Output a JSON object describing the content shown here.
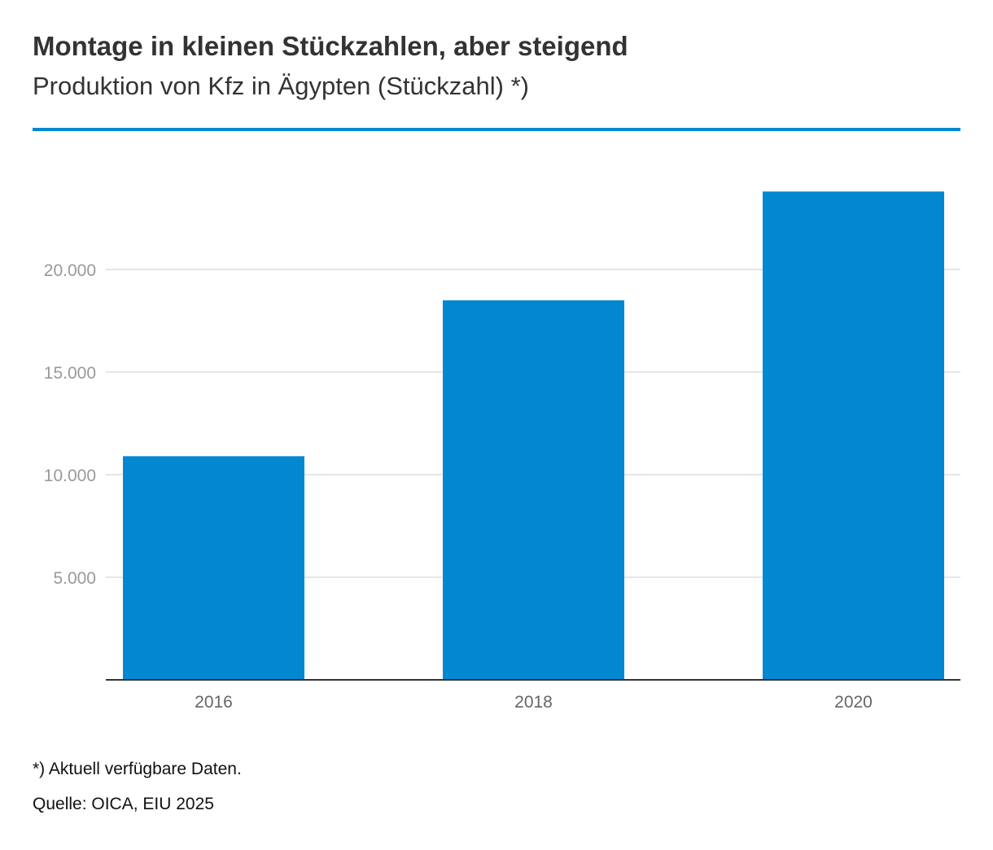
{
  "header": {
    "title": "Montage in kleinen Stückzahlen, aber steigend",
    "subtitle": "Produktion von Kfz in Ägypten (Stückzahl) *)"
  },
  "footer": {
    "footnote": "*) Aktuell verfügbare Daten.",
    "source": "Quelle: OICA, EIU 2025"
  },
  "chart_data": {
    "type": "bar",
    "categories": [
      "2016",
      "2018",
      "2020"
    ],
    "values": [
      10900,
      18500,
      23800
    ],
    "yticks": [
      5000,
      10000,
      15000,
      20000
    ],
    "ytick_labels": [
      "5.000",
      "10.000",
      "15.000",
      "20.000"
    ],
    "ylim": [
      0,
      25000
    ],
    "grid": true,
    "colors": {
      "bar": "#0288d1",
      "accent_rule": "#0288d1",
      "grid": "#dddddd",
      "axis": "#333333",
      "tick_label": "#999999",
      "category_label": "#666666"
    }
  }
}
